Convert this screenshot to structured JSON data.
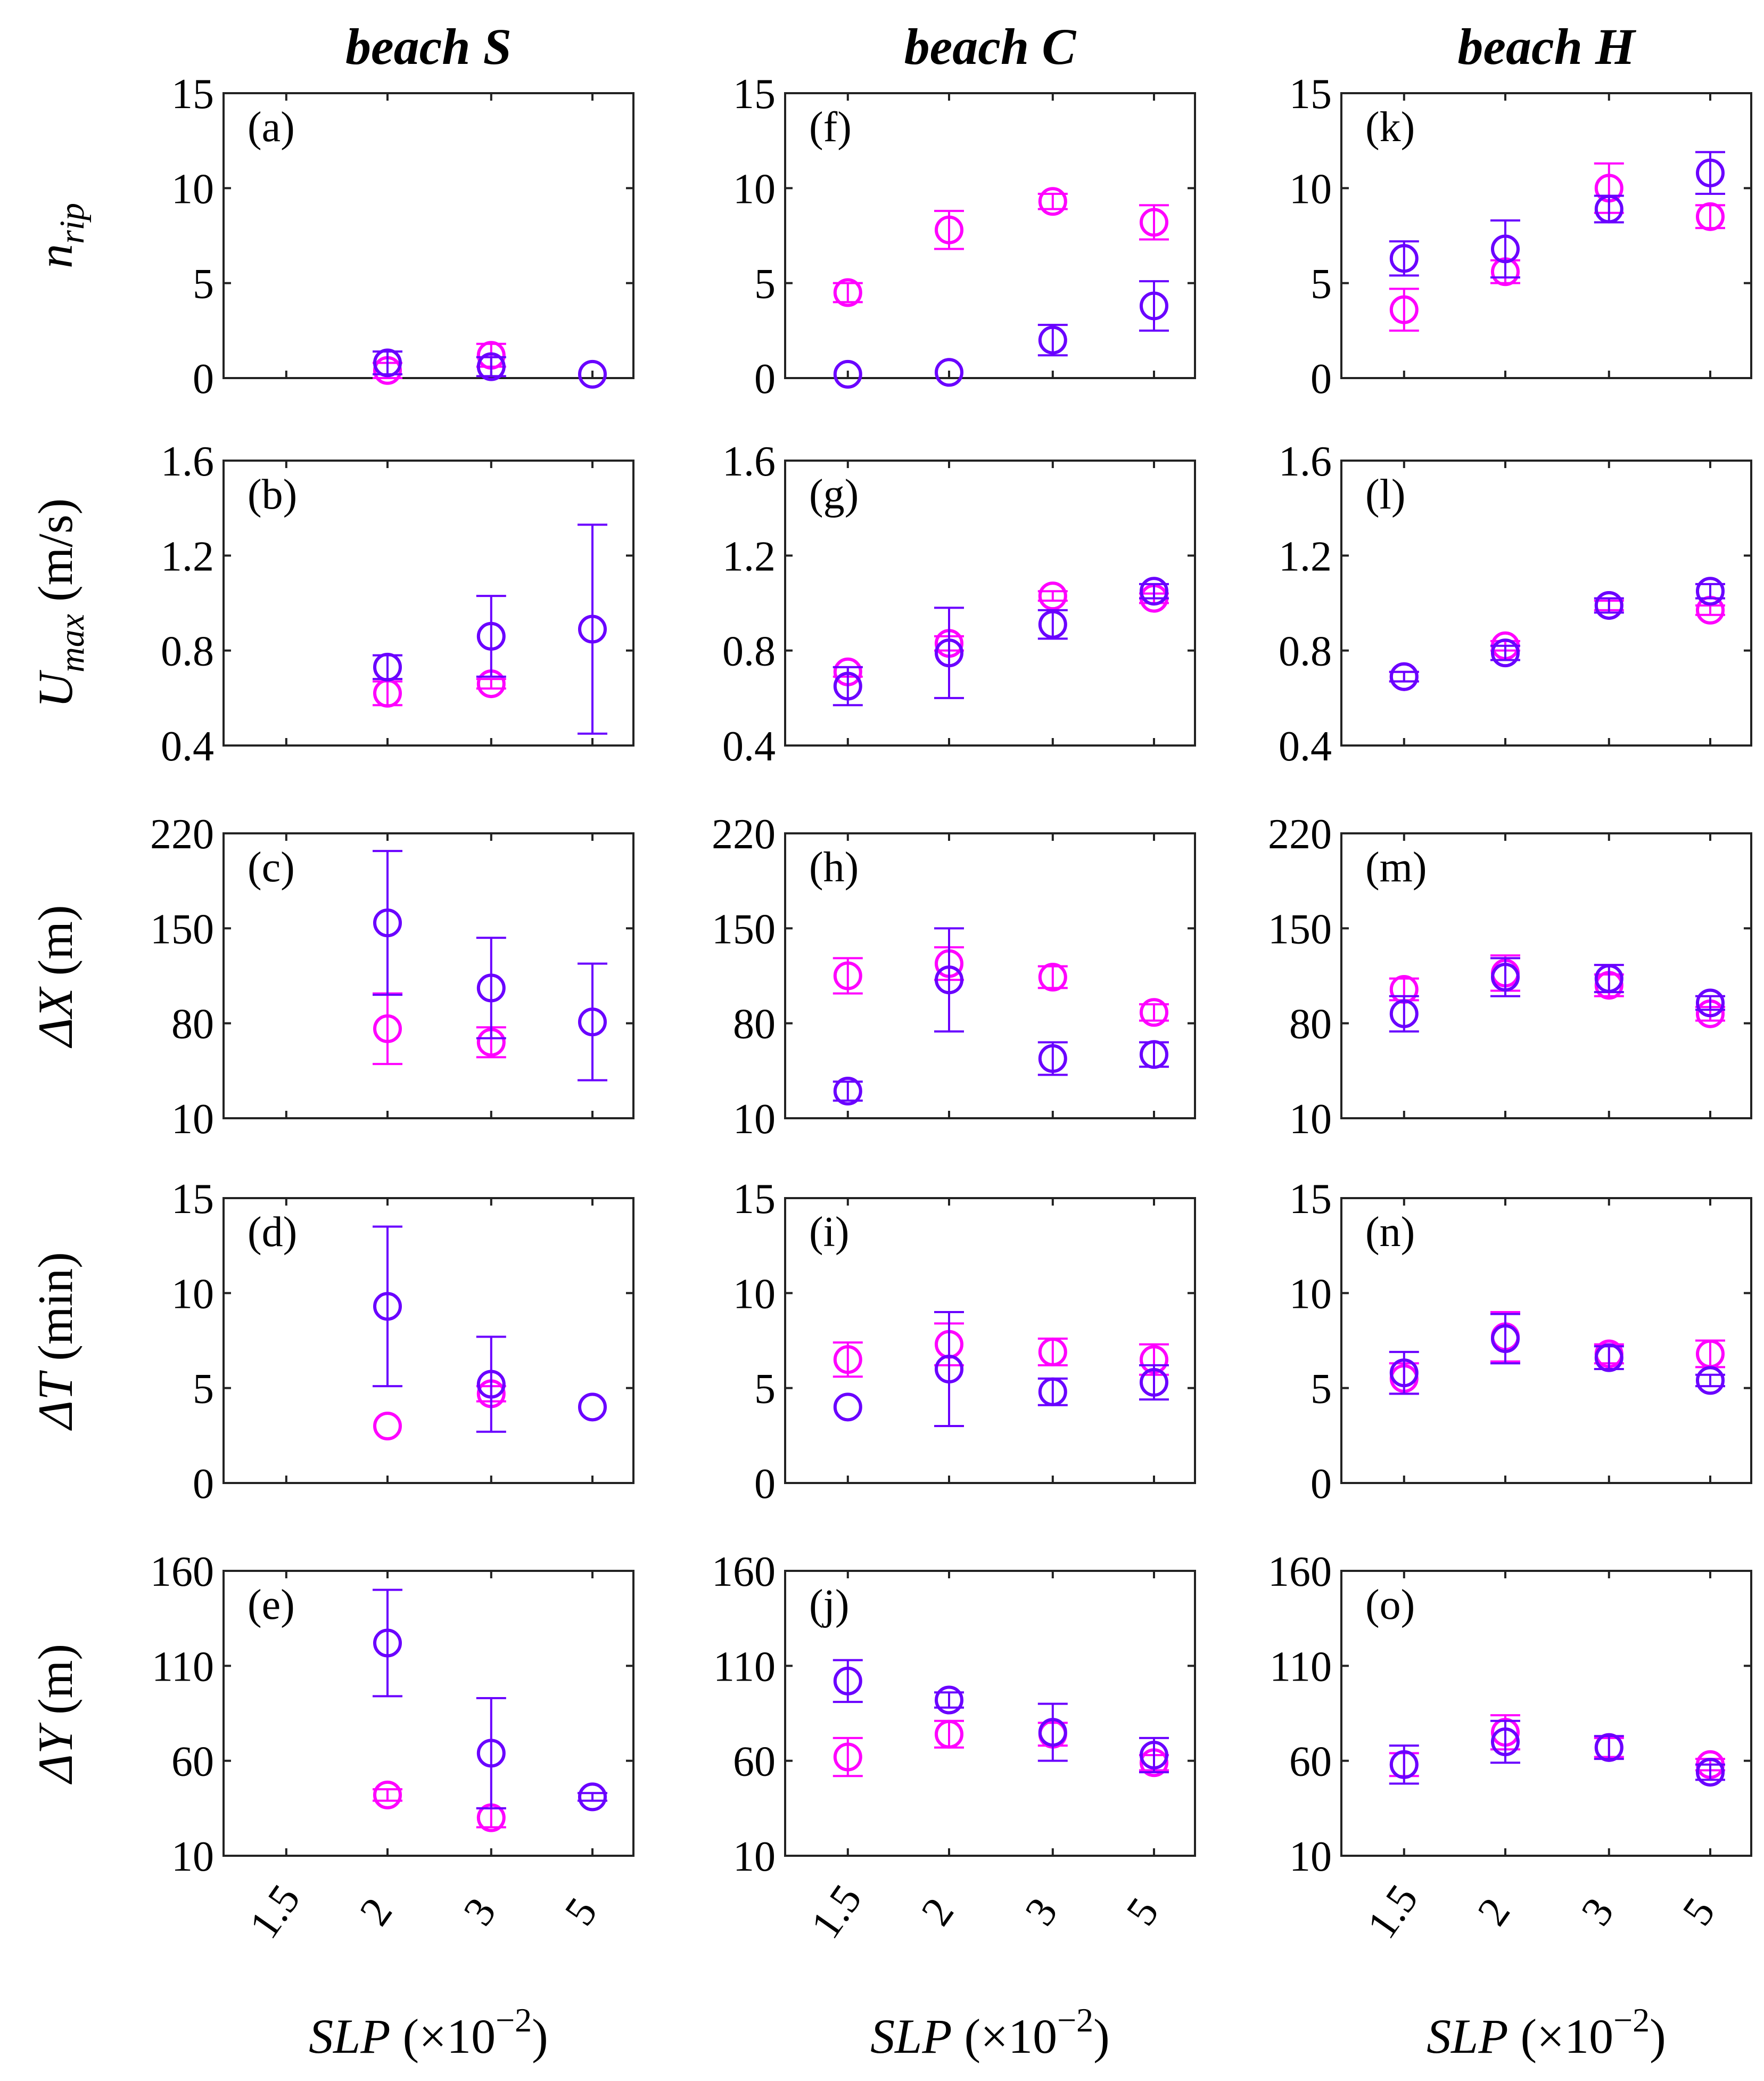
{
  "chart_data": {
    "type": "scatter",
    "title": "",
    "columns": [
      {
        "title": "beach S"
      },
      {
        "title": "beach C"
      },
      {
        "title": "beach H"
      }
    ],
    "x_categories": [
      "1.5",
      "2",
      "3",
      "5"
    ],
    "xlabel": {
      "var": "SLP",
      "unit_open": " (×10",
      "exponent": "−2",
      "unit_close": ")"
    },
    "series_colors": {
      "series_1": "#ff00ff",
      "series_2": "#6a00ff"
    },
    "rows": [
      {
        "ylabel": {
          "main": "n",
          "sub": "rip",
          "unit": ""
        },
        "ylim": [
          0,
          15
        ],
        "yticks": [
          "0",
          "5",
          "10",
          "15"
        ]
      },
      {
        "ylabel": {
          "main": "U",
          "sub": "max",
          "unit": " (m/s)"
        },
        "ylim": [
          0.4,
          1.6
        ],
        "yticks": [
          "0.4",
          "0.8",
          "1.2",
          "1.6"
        ]
      },
      {
        "ylabel": {
          "main": "ΔX",
          "sub": "",
          "unit": " (m)"
        },
        "ylim": [
          10,
          220
        ],
        "yticks": [
          "10",
          "80",
          "150",
          "220"
        ]
      },
      {
        "ylabel": {
          "main": "ΔT",
          "sub": "",
          "unit": " (min)"
        },
        "ylim": [
          0,
          15
        ],
        "yticks": [
          "0",
          "5",
          "10",
          "15"
        ]
      },
      {
        "ylabel": {
          "main": "ΔY",
          "sub": "",
          "unit": " (m)"
        },
        "ylim": [
          10,
          160
        ],
        "yticks": [
          "10",
          "60",
          "110",
          "160"
        ]
      }
    ],
    "panels": [
      {
        "label": "(a)",
        "col": 0,
        "row": 0,
        "series": [
          {
            "name": "series_1",
            "points": [
              {
                "x": "2",
                "y": 0.4,
                "err": 0.4
              },
              {
                "x": "3",
                "y": 1.2,
                "err": 0.6
              }
            ]
          },
          {
            "name": "series_2",
            "points": [
              {
                "x": "2",
                "y": 0.8,
                "err": 0.6
              },
              {
                "x": "3",
                "y": 0.6,
                "err": 0.5
              },
              {
                "x": "5",
                "y": 0.2,
                "err": 0
              }
            ]
          }
        ]
      },
      {
        "label": "(b)",
        "col": 0,
        "row": 1,
        "series": [
          {
            "name": "series_1",
            "points": [
              {
                "x": "2",
                "y": 0.62,
                "err": 0.05
              },
              {
                "x": "3",
                "y": 0.66,
                "err": 0.02
              }
            ]
          },
          {
            "name": "series_2",
            "points": [
              {
                "x": "2",
                "y": 0.73,
                "err": 0.05
              },
              {
                "x": "3",
                "y": 0.86,
                "err": 0.17
              },
              {
                "x": "5",
                "y": 0.89,
                "err": 0.44
              }
            ]
          }
        ]
      },
      {
        "label": "(c)",
        "col": 0,
        "row": 2,
        "series": [
          {
            "name": "series_1",
            "points": [
              {
                "x": "2",
                "y": 76,
                "err": 26
              },
              {
                "x": "3",
                "y": 66,
                "err": 11
              }
            ]
          },
          {
            "name": "series_2",
            "points": [
              {
                "x": "2",
                "y": 154,
                "err": 53
              },
              {
                "x": "3",
                "y": 106,
                "err": 37
              },
              {
                "x": "5",
                "y": 81,
                "err": 43
              }
            ]
          }
        ]
      },
      {
        "label": "(d)",
        "col": 0,
        "row": 3,
        "series": [
          {
            "name": "series_1",
            "points": [
              {
                "x": "2",
                "y": 3.0,
                "err": 0
              },
              {
                "x": "3",
                "y": 4.7,
                "err": 0.4
              }
            ]
          },
          {
            "name": "series_2",
            "points": [
              {
                "x": "2",
                "y": 9.3,
                "err": 4.2
              },
              {
                "x": "3",
                "y": 5.2,
                "err": 2.5
              },
              {
                "x": "5",
                "y": 4.0,
                "err": 0
              }
            ]
          }
        ]
      },
      {
        "label": "(e)",
        "col": 0,
        "row": 4,
        "series": [
          {
            "name": "series_1",
            "points": [
              {
                "x": "2",
                "y": 42,
                "err": 3
              },
              {
                "x": "3",
                "y": 30,
                "err": 5
              }
            ]
          },
          {
            "name": "series_2",
            "points": [
              {
                "x": "2",
                "y": 122,
                "err": 28
              },
              {
                "x": "3",
                "y": 64,
                "err": 29
              },
              {
                "x": "5",
                "y": 41,
                "err": 2
              }
            ]
          }
        ]
      },
      {
        "label": "(f)",
        "col": 1,
        "row": 0,
        "series": [
          {
            "name": "series_1",
            "points": [
              {
                "x": "1.5",
                "y": 4.5,
                "err": 0.5
              },
              {
                "x": "2",
                "y": 7.8,
                "err": 1.0
              },
              {
                "x": "3",
                "y": 9.3,
                "err": 0.4
              },
              {
                "x": "5",
                "y": 8.2,
                "err": 0.9
              }
            ]
          },
          {
            "name": "series_2",
            "points": [
              {
                "x": "1.5",
                "y": 0.2,
                "err": 0
              },
              {
                "x": "2",
                "y": 0.3,
                "err": 0
              },
              {
                "x": "3",
                "y": 2.0,
                "err": 0.8
              },
              {
                "x": "5",
                "y": 3.8,
                "err": 1.3
              }
            ]
          }
        ]
      },
      {
        "label": "(g)",
        "col": 1,
        "row": 1,
        "series": [
          {
            "name": "series_1",
            "points": [
              {
                "x": "1.5",
                "y": 0.71,
                "err": 0.02
              },
              {
                "x": "2",
                "y": 0.83,
                "err": 0.03
              },
              {
                "x": "3",
                "y": 1.03,
                "err": 0.02
              },
              {
                "x": "5",
                "y": 1.02,
                "err": 0.02
              }
            ]
          },
          {
            "name": "series_2",
            "points": [
              {
                "x": "1.5",
                "y": 0.65,
                "err": 0.08
              },
              {
                "x": "2",
                "y": 0.79,
                "err": 0.19
              },
              {
                "x": "3",
                "y": 0.91,
                "err": 0.06
              },
              {
                "x": "5",
                "y": 1.05,
                "err": 0.03
              }
            ]
          }
        ]
      },
      {
        "label": "(h)",
        "col": 1,
        "row": 2,
        "series": [
          {
            "name": "series_1",
            "points": [
              {
                "x": "1.5",
                "y": 115,
                "err": 13
              },
              {
                "x": "2",
                "y": 124,
                "err": 12
              },
              {
                "x": "3",
                "y": 114,
                "err": 8
              },
              {
                "x": "5",
                "y": 88,
                "err": 6
              }
            ]
          },
          {
            "name": "series_2",
            "points": [
              {
                "x": "1.5",
                "y": 30,
                "err": 7
              },
              {
                "x": "2",
                "y": 112,
                "err": 38
              },
              {
                "x": "3",
                "y": 54,
                "err": 12
              },
              {
                "x": "5",
                "y": 57,
                "err": 9
              }
            ]
          }
        ]
      },
      {
        "label": "(i)",
        "col": 1,
        "row": 3,
        "series": [
          {
            "name": "series_1",
            "points": [
              {
                "x": "1.5",
                "y": 6.5,
                "err": 0.9
              },
              {
                "x": "2",
                "y": 7.3,
                "err": 1.1
              },
              {
                "x": "3",
                "y": 6.9,
                "err": 0.7
              },
              {
                "x": "5",
                "y": 6.5,
                "err": 0.8
              }
            ]
          },
          {
            "name": "series_2",
            "points": [
              {
                "x": "1.5",
                "y": 4.0,
                "err": 0
              },
              {
                "x": "2",
                "y": 6.0,
                "err": 3.0
              },
              {
                "x": "3",
                "y": 4.8,
                "err": 0.7
              },
              {
                "x": "5",
                "y": 5.3,
                "err": 0.9
              }
            ]
          }
        ]
      },
      {
        "label": "(j)",
        "col": 1,
        "row": 4,
        "series": [
          {
            "name": "series_1",
            "points": [
              {
                "x": "1.5",
                "y": 62,
                "err": 10
              },
              {
                "x": "2",
                "y": 74,
                "err": 7
              },
              {
                "x": "3",
                "y": 74,
                "err": 6
              },
              {
                "x": "5",
                "y": 59,
                "err": 4
              }
            ]
          },
          {
            "name": "series_2",
            "points": [
              {
                "x": "1.5",
                "y": 102,
                "err": 11
              },
              {
                "x": "2",
                "y": 92,
                "err": 4
              },
              {
                "x": "3",
                "y": 75,
                "err": 15
              },
              {
                "x": "5",
                "y": 63,
                "err": 9
              }
            ]
          }
        ]
      },
      {
        "label": "(k)",
        "col": 2,
        "row": 0,
        "series": [
          {
            "name": "series_1",
            "points": [
              {
                "x": "1.5",
                "y": 3.6,
                "err": 1.1
              },
              {
                "x": "2",
                "y": 5.6,
                "err": 0.6
              },
              {
                "x": "3",
                "y": 10.0,
                "err": 1.3
              },
              {
                "x": "5",
                "y": 8.5,
                "err": 0.6
              }
            ]
          },
          {
            "name": "series_2",
            "points": [
              {
                "x": "1.5",
                "y": 6.3,
                "err": 0.9
              },
              {
                "x": "2",
                "y": 6.8,
                "err": 1.5
              },
              {
                "x": "3",
                "y": 8.9,
                "err": 0.7
              },
              {
                "x": "5",
                "y": 10.8,
                "err": 1.1
              }
            ]
          }
        ]
      },
      {
        "label": "(l)",
        "col": 2,
        "row": 1,
        "series": [
          {
            "name": "series_1",
            "points": [
              {
                "x": "1.5",
                "y": 0.69,
                "err": 0.02
              },
              {
                "x": "2",
                "y": 0.82,
                "err": 0.02
              },
              {
                "x": "3",
                "y": 0.99,
                "err": 0.02
              },
              {
                "x": "5",
                "y": 0.97,
                "err": 0.02
              }
            ]
          },
          {
            "name": "series_2",
            "points": [
              {
                "x": "1.5",
                "y": 0.69,
                "err": 0.02
              },
              {
                "x": "2",
                "y": 0.79,
                "err": 0.03
              },
              {
                "x": "3",
                "y": 0.99,
                "err": 0.03
              },
              {
                "x": "5",
                "y": 1.05,
                "err": 0.03
              }
            ]
          }
        ]
      },
      {
        "label": "(m)",
        "col": 2,
        "row": 2,
        "series": [
          {
            "name": "series_1",
            "points": [
              {
                "x": "1.5",
                "y": 105,
                "err": 8
              },
              {
                "x": "2",
                "y": 117,
                "err": 13
              },
              {
                "x": "3",
                "y": 108,
                "err": 8
              },
              {
                "x": "5",
                "y": 87,
                "err": 5
              }
            ]
          },
          {
            "name": "series_2",
            "points": [
              {
                "x": "1.5",
                "y": 87,
                "err": 13
              },
              {
                "x": "2",
                "y": 114,
                "err": 14
              },
              {
                "x": "3",
                "y": 113,
                "err": 10
              },
              {
                "x": "5",
                "y": 95,
                "err": 5
              }
            ]
          }
        ]
      },
      {
        "label": "(n)",
        "col": 2,
        "row": 3,
        "series": [
          {
            "name": "series_1",
            "points": [
              {
                "x": "1.5",
                "y": 5.5,
                "err": 0.8
              },
              {
                "x": "2",
                "y": 7.7,
                "err": 1.3
              },
              {
                "x": "3",
                "y": 6.8,
                "err": 0.5
              },
              {
                "x": "5",
                "y": 6.8,
                "err": 0.7
              }
            ]
          },
          {
            "name": "series_2",
            "points": [
              {
                "x": "1.5",
                "y": 5.8,
                "err": 1.1
              },
              {
                "x": "2",
                "y": 7.6,
                "err": 1.3
              },
              {
                "x": "3",
                "y": 6.6,
                "err": 0.6
              },
              {
                "x": "5",
                "y": 5.4,
                "err": 0.3
              }
            ]
          }
        ]
      },
      {
        "label": "(o)",
        "col": 2,
        "row": 4,
        "series": [
          {
            "name": "series_1",
            "points": [
              {
                "x": "1.5",
                "y": 58,
                "err": 6
              },
              {
                "x": "2",
                "y": 75,
                "err": 9
              },
              {
                "x": "3",
                "y": 67,
                "err": 5
              },
              {
                "x": "5",
                "y": 58,
                "err": 3
              }
            ]
          },
          {
            "name": "series_2",
            "points": [
              {
                "x": "1.5",
                "y": 58,
                "err": 10
              },
              {
                "x": "2",
                "y": 70,
                "err": 11
              },
              {
                "x": "3",
                "y": 67,
                "err": 6
              },
              {
                "x": "5",
                "y": 54,
                "err": 4
              }
            ]
          }
        ]
      }
    ]
  }
}
